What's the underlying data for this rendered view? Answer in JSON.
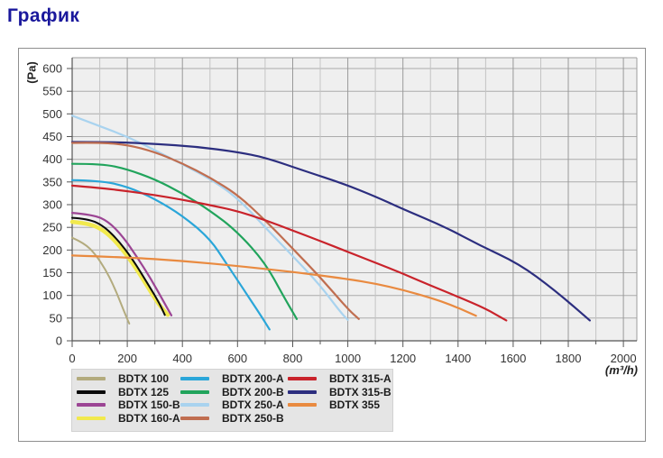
{
  "title": "График",
  "chart_data": {
    "type": "line",
    "title": "",
    "xlabel": "(m³/h)",
    "ylabel": "(Pa)",
    "xlim": [
      0,
      2049
    ],
    "ylim": [
      0,
      624
    ],
    "grid": true,
    "legend_position": "bottom-left",
    "xticks": [
      0,
      200,
      400,
      600,
      800,
      1000,
      1200,
      1400,
      1600,
      1800,
      2000
    ],
    "xtick_minor_step": 100,
    "yticks": [
      0,
      50,
      100,
      150,
      200,
      250,
      300,
      350,
      400,
      450,
      500,
      550,
      600
    ],
    "draw_order": [
      3,
      0,
      2,
      1,
      4,
      5,
      6,
      9,
      7,
      8,
      10
    ],
    "series": [
      {
        "name": "BDTX 100",
        "color": "#b3ab7e",
        "width": 2,
        "points": [
          [
            0,
            227
          ],
          [
            45,
            215
          ],
          [
            85,
            190
          ],
          [
            120,
            158
          ],
          [
            150,
            122
          ],
          [
            175,
            85
          ],
          [
            195,
            55
          ],
          [
            207,
            38
          ]
        ]
      },
      {
        "name": "BDTX 125",
        "color": "#0a0a0a",
        "width": 2,
        "points": [
          [
            0,
            271
          ],
          [
            55,
            269
          ],
          [
            110,
            255
          ],
          [
            164,
            224
          ],
          [
            219,
            180
          ],
          [
            273,
            127
          ],
          [
            317,
            82
          ],
          [
            336,
            57
          ]
        ]
      },
      {
        "name": "BDTX 150-B",
        "color": "#9c4594",
        "width": 2.2,
        "points": [
          [
            0,
            282
          ],
          [
            76,
            278
          ],
          [
            131,
            263
          ],
          [
            185,
            229
          ],
          [
            234,
            186
          ],
          [
            285,
            137
          ],
          [
            327,
            92
          ],
          [
            360,
            56
          ]
        ]
      },
      {
        "name": "BDTX 160-A",
        "color": "#f1e94d",
        "width": 4.5,
        "points": [
          [
            0,
            262
          ],
          [
            55,
            259
          ],
          [
            110,
            246
          ],
          [
            165,
            215
          ],
          [
            220,
            171
          ],
          [
            272,
            121
          ],
          [
            313,
            81
          ],
          [
            347,
            57
          ]
        ]
      },
      {
        "name": "BDTX 200-A",
        "color": "#2aa6d9",
        "width": 2.2,
        "points": [
          [
            0,
            354
          ],
          [
            100,
            353
          ],
          [
            200,
            340
          ],
          [
            300,
            313
          ],
          [
            400,
            276
          ],
          [
            500,
            225
          ],
          [
            560,
            170
          ],
          [
            620,
            115
          ],
          [
            680,
            60
          ],
          [
            716,
            25
          ]
        ]
      },
      {
        "name": "BDTX 200-B",
        "color": "#21a45c",
        "width": 2.2,
        "points": [
          [
            0,
            390
          ],
          [
            110,
            390
          ],
          [
            200,
            378
          ],
          [
            300,
            356
          ],
          [
            400,
            325
          ],
          [
            500,
            287
          ],
          [
            600,
            240
          ],
          [
            700,
            172
          ],
          [
            765,
            100
          ],
          [
            815,
            48
          ]
        ]
      },
      {
        "name": "BDTX 250-A",
        "color": "#a9d3ef",
        "width": 2.2,
        "points": [
          [
            0,
            496
          ],
          [
            100,
            473
          ],
          [
            200,
            450
          ],
          [
            300,
            420
          ],
          [
            400,
            389
          ],
          [
            500,
            357
          ],
          [
            600,
            315
          ],
          [
            700,
            250
          ],
          [
            800,
            187
          ],
          [
            900,
            122
          ],
          [
            975,
            62
          ],
          [
            1000,
            46
          ]
        ]
      },
      {
        "name": "BDTX 250-B",
        "color": "#c06e50",
        "width": 2.2,
        "points": [
          [
            0,
            436
          ],
          [
            100,
            437
          ],
          [
            200,
            432
          ],
          [
            300,
            416
          ],
          [
            400,
            391
          ],
          [
            500,
            360
          ],
          [
            600,
            322
          ],
          [
            700,
            266
          ],
          [
            800,
            203
          ],
          [
            900,
            140
          ],
          [
            1000,
            70
          ],
          [
            1040,
            48
          ]
        ]
      },
      {
        "name": "BDTX 315-A",
        "color": "#c9232b",
        "width": 2.2,
        "points": [
          [
            0,
            342
          ],
          [
            100,
            337
          ],
          [
            200,
            330
          ],
          [
            300,
            321
          ],
          [
            400,
            311
          ],
          [
            500,
            299
          ],
          [
            600,
            286
          ],
          [
            700,
            266
          ],
          [
            800,
            243
          ],
          [
            900,
            220
          ],
          [
            1000,
            196
          ],
          [
            1100,
            172
          ],
          [
            1200,
            148
          ],
          [
            1300,
            122
          ],
          [
            1400,
            97
          ],
          [
            1500,
            71
          ],
          [
            1575,
            45
          ]
        ]
      },
      {
        "name": "BDTX 315-B",
        "color": "#2c2e7f",
        "width": 2.2,
        "points": [
          [
            0,
            438
          ],
          [
            150,
            438
          ],
          [
            300,
            434
          ],
          [
            450,
            428
          ],
          [
            600,
            416
          ],
          [
            700,
            404
          ],
          [
            850,
            373
          ],
          [
            980,
            347
          ],
          [
            1100,
            318
          ],
          [
            1200,
            290
          ],
          [
            1350,
            252
          ],
          [
            1480,
            210
          ],
          [
            1620,
            170
          ],
          [
            1750,
            112
          ],
          [
            1878,
            45
          ]
        ]
      },
      {
        "name": "BDTX 355",
        "color": "#e98a40",
        "width": 2.2,
        "points": [
          [
            0,
            188
          ],
          [
            200,
            184
          ],
          [
            400,
            176
          ],
          [
            600,
            165
          ],
          [
            800,
            152
          ],
          [
            1000,
            136
          ],
          [
            1100,
            126
          ],
          [
            1200,
            112
          ],
          [
            1300,
            95
          ],
          [
            1380,
            78
          ],
          [
            1465,
            55
          ]
        ]
      }
    ]
  },
  "colors": {
    "title": "#1a189c",
    "plot_bg": "#efefef",
    "grid_minor": "#c4c4c4",
    "grid_major": "#999999",
    "grid_horizontal": "#ababab",
    "axis": "#555555",
    "tick_label": "#333333",
    "legend_bg": "#e5e5e5"
  }
}
